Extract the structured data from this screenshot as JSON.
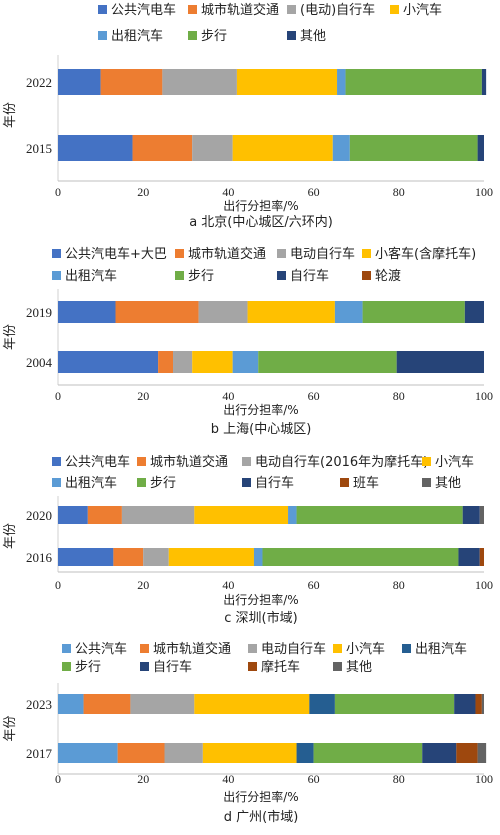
{
  "chart_data": [
    {
      "type": "bar",
      "orientation": "horizontal",
      "stacked": true,
      "caption": "a 北京(中心城区/六环内)",
      "xlabel": "出行分担率/%",
      "ylabel": "年份",
      "xlim": [
        0,
        100
      ],
      "xticks": [
        "0",
        "20",
        "40",
        "60",
        "80",
        "100"
      ],
      "categories": [
        "2022",
        "2015"
      ],
      "legend": {
        "position": "top",
        "columns": 4
      },
      "series": [
        {
          "name": "公共汽电车",
          "color": "#4472c4",
          "values": [
            10,
            17.5
          ]
        },
        {
          "name": "城市轨道交通",
          "color": "#ed7d31",
          "values": [
            14.5,
            14
          ]
        },
        {
          "name": "(电动)自行车",
          "color": "#a5a5a5",
          "values": [
            17.5,
            9.5
          ]
        },
        {
          "name": "小汽车",
          "color": "#ffc000",
          "values": [
            23.5,
            23.5
          ]
        },
        {
          "name": "出租汽车",
          "color": "#5b9bd5",
          "values": [
            2,
            4
          ]
        },
        {
          "name": "步行",
          "color": "#70ad47",
          "values": [
            32,
            30
          ]
        },
        {
          "name": "其他",
          "color": "#264478",
          "values": [
            1,
            1.5
          ]
        }
      ]
    },
    {
      "type": "bar",
      "orientation": "horizontal",
      "stacked": true,
      "caption": "b 上海(中心城区)",
      "xlabel": "出行分担率/%",
      "ylabel": "年份",
      "xlim": [
        0,
        100
      ],
      "xticks": [
        "0",
        "20",
        "40",
        "60",
        "80",
        "100"
      ],
      "categories": [
        "2019",
        "2004"
      ],
      "legend": {
        "position": "top",
        "columns": 4
      },
      "series": [
        {
          "name": "公共汽电车+大巴",
          "color": "#4472c4",
          "values": [
            13.5,
            23.5
          ]
        },
        {
          "name": "城市轨道交通",
          "color": "#ed7d31",
          "values": [
            19.5,
            3.5
          ]
        },
        {
          "name": "电动自行车",
          "color": "#a5a5a5",
          "values": [
            11.5,
            4.5
          ]
        },
        {
          "name": "小客车(含摩托车)",
          "color": "#ffc000",
          "values": [
            20.5,
            9.5
          ]
        },
        {
          "name": "出租汽车",
          "color": "#5b9bd5",
          "values": [
            6.5,
            6
          ]
        },
        {
          "name": "步行",
          "color": "#70ad47",
          "values": [
            24,
            32.5
          ]
        },
        {
          "name": "自行车",
          "color": "#264478",
          "values": [
            4.5,
            20.5
          ]
        },
        {
          "name": "轮渡",
          "color": "#9e480e",
          "values": [
            0,
            0
          ]
        }
      ]
    },
    {
      "type": "bar",
      "orientation": "horizontal",
      "stacked": true,
      "caption": "c 深圳(市域)",
      "xlabel": "出行分担率/%",
      "ylabel": "年份",
      "xlim": [
        0,
        100
      ],
      "xticks": [
        "0",
        "20",
        "40",
        "60",
        "80",
        "100"
      ],
      "categories": [
        "2020",
        "2016"
      ],
      "legend": {
        "position": "top",
        "columns": 4
      },
      "series": [
        {
          "name": "公共汽电车",
          "color": "#4472c4",
          "values": [
            7,
            13
          ]
        },
        {
          "name": "城市轨道交通",
          "color": "#ed7d31",
          "values": [
            8,
            7
          ]
        },
        {
          "name": "电动自行车(2016年为摩托车)",
          "color": "#a5a5a5",
          "values": [
            17,
            6
          ]
        },
        {
          "name": "小汽车",
          "color": "#ffc000",
          "values": [
            22,
            20
          ]
        },
        {
          "name": "出租汽车",
          "color": "#5b9bd5",
          "values": [
            2,
            2
          ]
        },
        {
          "name": "步行",
          "color": "#70ad47",
          "values": [
            39,
            46
          ]
        },
        {
          "name": "自行车",
          "color": "#264478",
          "values": [
            4,
            5
          ]
        },
        {
          "name": "班车",
          "color": "#9e480e",
          "values": [
            0,
            1
          ]
        },
        {
          "name": "其他",
          "color": "#636363",
          "values": [
            1,
            0
          ]
        }
      ]
    },
    {
      "type": "bar",
      "orientation": "horizontal",
      "stacked": true,
      "caption": "d 广州(市域)",
      "xlabel": "出行分担率/%",
      "ylabel": "年份",
      "xlim": [
        0,
        100
      ],
      "xticks": [
        "0",
        "20",
        "40",
        "60",
        "80",
        "100"
      ],
      "categories": [
        "2023",
        "2017"
      ],
      "legend": {
        "position": "top",
        "columns": 5
      },
      "series": [
        {
          "name": "公共汽车",
          "color": "#5b9bd5",
          "values": [
            6,
            14
          ]
        },
        {
          "name": "城市轨道交通",
          "color": "#ed7d31",
          "values": [
            11,
            11
          ]
        },
        {
          "name": "电动自行车",
          "color": "#a5a5a5",
          "values": [
            15,
            9
          ]
        },
        {
          "name": "小汽车",
          "color": "#ffc000",
          "values": [
            27,
            22
          ]
        },
        {
          "name": "出租汽车",
          "color": "#255e91",
          "values": [
            6,
            4
          ]
        },
        {
          "name": "步行",
          "color": "#70ad47",
          "values": [
            28,
            25.5
          ]
        },
        {
          "name": "自行车",
          "color": "#264478",
          "values": [
            5,
            8
          ]
        },
        {
          "name": "摩托车",
          "color": "#9e480e",
          "values": [
            1.5,
            5
          ]
        },
        {
          "name": "其他",
          "color": "#636363",
          "values": [
            0.5,
            2
          ]
        }
      ]
    }
  ]
}
